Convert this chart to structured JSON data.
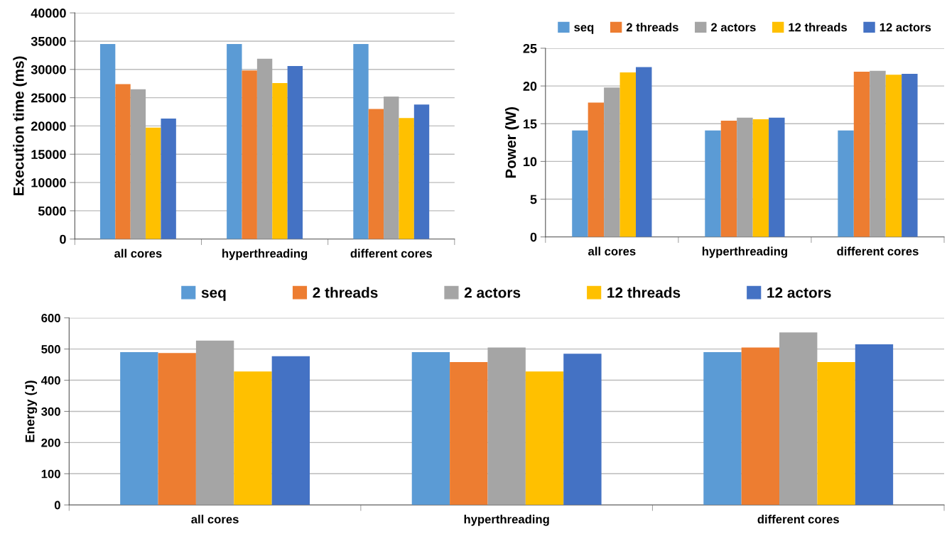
{
  "chart_data": [
    {
      "type": "bar",
      "ylabel": "Execution time (ms)",
      "categories": [
        "all cores",
        "hyperthreading",
        "different cores"
      ],
      "series": [
        {
          "color": "#5b9bd5",
          "values": [
            34500,
            34500,
            34500
          ]
        },
        {
          "color": "#ed7d31",
          "values": [
            27400,
            29800,
            23000
          ]
        },
        {
          "color": "#a5a5a5",
          "values": [
            26500,
            31900,
            25200
          ]
        },
        {
          "color": "#ffc000",
          "values": [
            19700,
            27600,
            21400
          ]
        },
        {
          "color": "#4472c4",
          "values": [
            21300,
            30600,
            23800
          ]
        }
      ],
      "ylim": [
        0,
        40000
      ],
      "yticks": [
        0,
        5000,
        10000,
        15000,
        20000,
        25000,
        30000,
        35000,
        40000
      ],
      "grid": "y",
      "legend": false
    },
    {
      "type": "bar",
      "ylabel": "Power (W)",
      "categories": [
        "all cores",
        "hyperthreading",
        "different cores"
      ],
      "series": [
        {
          "name": "seq",
          "color": "#5b9bd5",
          "values": [
            14.1,
            14.1,
            14.1
          ]
        },
        {
          "name": "2 threads",
          "color": "#ed7d31",
          "values": [
            17.8,
            15.4,
            21.9
          ]
        },
        {
          "name": "2 actors",
          "color": "#a5a5a5",
          "values": [
            19.8,
            15.8,
            22.0
          ]
        },
        {
          "name": "12 threads",
          "color": "#ffc000",
          "values": [
            21.8,
            15.6,
            21.5
          ]
        },
        {
          "name": "12 actors",
          "color": "#4472c4",
          "values": [
            22.5,
            15.8,
            21.6
          ]
        }
      ],
      "ylim": [
        0,
        25
      ],
      "yticks": [
        0,
        5,
        10,
        15,
        20,
        25
      ],
      "grid": "y",
      "legend": "top"
    },
    {
      "type": "bar",
      "ylabel": "Energy (J)",
      "categories": [
        "all cores",
        "hyperthreading",
        "different cores"
      ],
      "series": [
        {
          "name": "seq",
          "color": "#5b9bd5",
          "values": [
            490,
            490,
            490
          ]
        },
        {
          "name": "2 threads",
          "color": "#ed7d31",
          "values": [
            487,
            458,
            505
          ]
        },
        {
          "name": "2 actors",
          "color": "#a5a5a5",
          "values": [
            527,
            505,
            553
          ]
        },
        {
          "name": "12 threads",
          "color": "#ffc000",
          "values": [
            428,
            428,
            458
          ]
        },
        {
          "name": "12 actors",
          "color": "#4472c4",
          "values": [
            477,
            485,
            515
          ]
        }
      ],
      "ylim": [
        0,
        600
      ],
      "yticks": [
        0,
        100,
        200,
        300,
        400,
        500,
        600
      ],
      "grid": "y",
      "legend": "top"
    }
  ]
}
